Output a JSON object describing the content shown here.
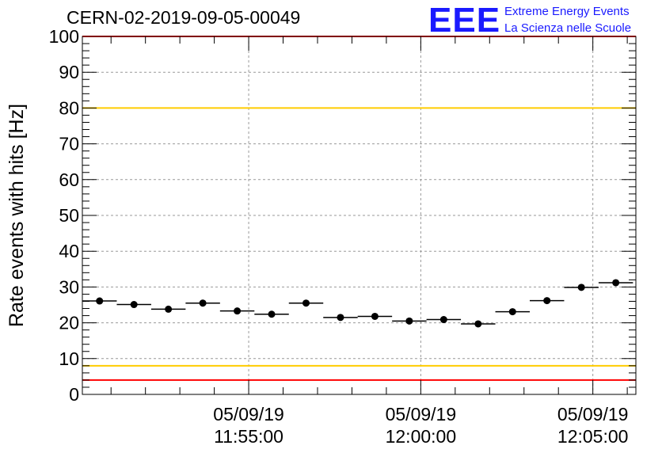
{
  "header": {
    "run_title": "CERN-02-2019-09-05-00049",
    "logo_text": "EEE",
    "logo_line1": "Extreme Energy Events",
    "logo_line2": "La Scienza nelle Scuole"
  },
  "colors": {
    "logo": "#1a1aff",
    "red_limit": "#ff0000",
    "yellow_limit": "#ffcc00",
    "marker": "#000000",
    "grid": "#999999"
  },
  "chart_data": {
    "type": "scatter",
    "ylabel": "Rate events with hits [Hz]",
    "ylim": [
      0,
      100
    ],
    "yticks": [
      "0",
      "10",
      "20",
      "30",
      "40",
      "50",
      "60",
      "70",
      "80",
      "90",
      "100"
    ],
    "xticks": [
      {
        "date": "05/09/19",
        "time": "11:55:00"
      },
      {
        "date": "05/09/19",
        "time": "12:00:00"
      },
      {
        "date": "05/09/19",
        "time": "12:05:00"
      }
    ],
    "xrange": [
      "11:50:10",
      "12:06:15"
    ],
    "bin_width_seconds": 60,
    "x": [
      "11:50:40",
      "11:51:40",
      "11:52:40",
      "11:53:40",
      "11:54:40",
      "11:55:40",
      "11:56:40",
      "11:57:40",
      "11:58:40",
      "11:59:40",
      "12:00:40",
      "12:01:40",
      "12:02:40",
      "12:03:40",
      "12:04:40",
      "12:05:40"
    ],
    "values": [
      26.1,
      25.1,
      23.8,
      25.5,
      23.3,
      22.4,
      25.5,
      21.5,
      21.8,
      20.5,
      20.9,
      19.7,
      23.1,
      26.2,
      29.9,
      31.2
    ],
    "horizontal_lines": [
      {
        "y": 100,
        "color": "#ff0000"
      },
      {
        "y": 80,
        "color": "#ffcc00"
      },
      {
        "y": 8,
        "color": "#ffcc00"
      },
      {
        "y": 4,
        "color": "#ff0000"
      }
    ],
    "grid": true
  }
}
